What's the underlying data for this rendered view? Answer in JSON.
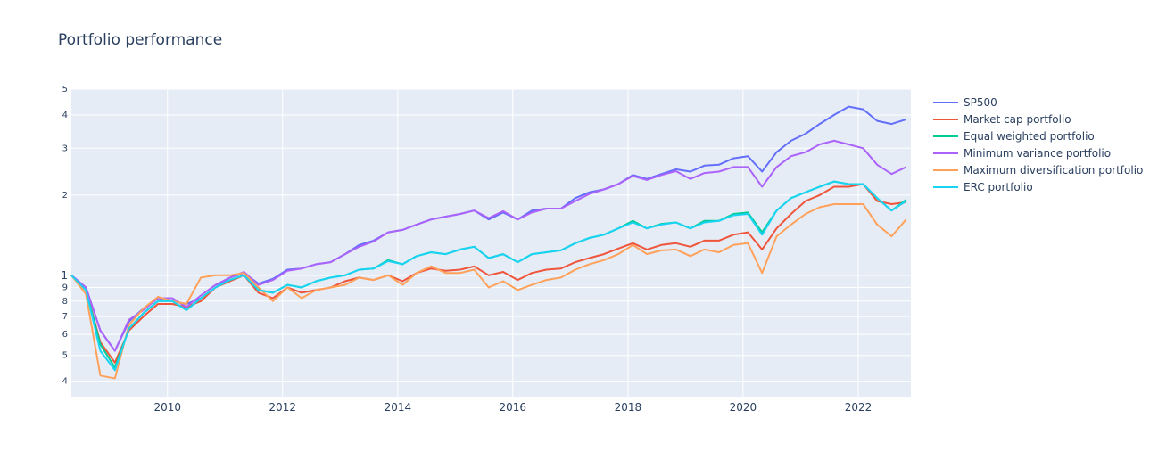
{
  "chart_data": {
    "type": "line",
    "title": "Portfolio performance",
    "xlabel": "",
    "ylabel": "",
    "y_scale": "log",
    "xlim": [
      "2008-05-01",
      "2022-12-01"
    ],
    "ylim": [
      0.35,
      5.0
    ],
    "grid": true,
    "legend_position": "right",
    "x_ticks": [
      "2010",
      "2012",
      "2014",
      "2016",
      "2018",
      "2020",
      "2022"
    ],
    "y_major_ticks": [
      "1"
    ],
    "y_minor_ticks": [
      "4",
      "5",
      "6",
      "7",
      "8",
      "9",
      "2",
      "3",
      "4",
      "5"
    ],
    "x": [
      "2008-05",
      "2008-08",
      "2008-11",
      "2009-02",
      "2009-05",
      "2009-08",
      "2009-11",
      "2010-02",
      "2010-05",
      "2010-08",
      "2010-11",
      "2011-02",
      "2011-05",
      "2011-08",
      "2011-11",
      "2012-02",
      "2012-05",
      "2012-08",
      "2012-11",
      "2013-02",
      "2013-05",
      "2013-08",
      "2013-11",
      "2014-02",
      "2014-05",
      "2014-08",
      "2014-11",
      "2015-02",
      "2015-05",
      "2015-08",
      "2015-11",
      "2016-02",
      "2016-05",
      "2016-08",
      "2016-11",
      "2017-02",
      "2017-05",
      "2017-08",
      "2017-11",
      "2018-02",
      "2018-05",
      "2018-08",
      "2018-11",
      "2019-02",
      "2019-05",
      "2019-08",
      "2019-11",
      "2020-02",
      "2020-05",
      "2020-08",
      "2020-11",
      "2021-02",
      "2021-05",
      "2021-08",
      "2021-11",
      "2022-02",
      "2022-05",
      "2022-08",
      "2022-11"
    ],
    "series": [
      {
        "name": "SP500",
        "color": "#636efa",
        "values": [
          1.0,
          0.9,
          0.62,
          0.52,
          0.67,
          0.75,
          0.82,
          0.8,
          0.78,
          0.82,
          0.9,
          0.98,
          1.02,
          0.93,
          0.97,
          1.05,
          1.06,
          1.1,
          1.12,
          1.2,
          1.3,
          1.35,
          1.45,
          1.48,
          1.55,
          1.62,
          1.66,
          1.7,
          1.75,
          1.62,
          1.72,
          1.62,
          1.75,
          1.78,
          1.78,
          1.95,
          2.05,
          2.1,
          2.2,
          2.38,
          2.3,
          2.4,
          2.5,
          2.45,
          2.58,
          2.6,
          2.75,
          2.8,
          2.45,
          2.9,
          3.2,
          3.4,
          3.7,
          4.0,
          4.3,
          4.2,
          3.8,
          3.7,
          3.85
        ]
      },
      {
        "name": "Market cap portfolio",
        "color": "#ef553b",
        "values": [
          1.0,
          0.88,
          0.56,
          0.47,
          0.62,
          0.7,
          0.78,
          0.78,
          0.76,
          0.8,
          0.9,
          0.95,
          1.0,
          0.86,
          0.82,
          0.9,
          0.86,
          0.88,
          0.9,
          0.95,
          0.98,
          0.96,
          1.0,
          0.95,
          1.02,
          1.06,
          1.04,
          1.05,
          1.08,
          1.0,
          1.03,
          0.96,
          1.02,
          1.05,
          1.06,
          1.12,
          1.16,
          1.2,
          1.26,
          1.32,
          1.25,
          1.3,
          1.32,
          1.28,
          1.35,
          1.35,
          1.42,
          1.45,
          1.25,
          1.5,
          1.7,
          1.9,
          2.0,
          2.15,
          2.15,
          2.2,
          1.9,
          1.85,
          1.88
        ]
      },
      {
        "name": "Equal weighted portfolio",
        "color": "#00cc96",
        "values": [
          1.0,
          0.88,
          0.55,
          0.45,
          0.63,
          0.72,
          0.8,
          0.8,
          0.74,
          0.82,
          0.9,
          0.96,
          1.0,
          0.88,
          0.86,
          0.92,
          0.9,
          0.95,
          0.98,
          1.0,
          1.05,
          1.06,
          1.14,
          1.1,
          1.18,
          1.22,
          1.2,
          1.25,
          1.28,
          1.16,
          1.2,
          1.12,
          1.2,
          1.22,
          1.24,
          1.32,
          1.38,
          1.42,
          1.5,
          1.6,
          1.5,
          1.56,
          1.58,
          1.5,
          1.6,
          1.6,
          1.7,
          1.72,
          1.45,
          1.75,
          1.95,
          2.05,
          2.15,
          2.25,
          2.2,
          2.2,
          1.95,
          1.75,
          1.92
        ]
      },
      {
        "name": "Minimum variance portfolio",
        "color": "#ab63fa",
        "values": [
          1.0,
          0.9,
          0.62,
          0.52,
          0.68,
          0.74,
          0.82,
          0.82,
          0.76,
          0.84,
          0.92,
          0.98,
          1.03,
          0.92,
          0.96,
          1.04,
          1.06,
          1.1,
          1.12,
          1.2,
          1.28,
          1.34,
          1.45,
          1.48,
          1.55,
          1.62,
          1.66,
          1.7,
          1.75,
          1.64,
          1.74,
          1.62,
          1.72,
          1.78,
          1.78,
          1.9,
          2.02,
          2.1,
          2.2,
          2.36,
          2.28,
          2.38,
          2.46,
          2.3,
          2.42,
          2.45,
          2.55,
          2.55,
          2.15,
          2.55,
          2.8,
          2.9,
          3.1,
          3.2,
          3.1,
          3.0,
          2.6,
          2.4,
          2.55
        ]
      },
      {
        "name": "Maximum diversification portfolio",
        "color": "#ffa15a",
        "values": [
          1.0,
          0.85,
          0.42,
          0.41,
          0.65,
          0.75,
          0.83,
          0.8,
          0.78,
          0.98,
          1.0,
          1.0,
          1.02,
          0.9,
          0.8,
          0.9,
          0.82,
          0.88,
          0.9,
          0.92,
          0.98,
          0.96,
          1.0,
          0.92,
          1.02,
          1.08,
          1.02,
          1.02,
          1.05,
          0.9,
          0.95,
          0.88,
          0.92,
          0.96,
          0.98,
          1.05,
          1.1,
          1.14,
          1.2,
          1.3,
          1.2,
          1.24,
          1.25,
          1.18,
          1.25,
          1.22,
          1.3,
          1.32,
          1.02,
          1.4,
          1.55,
          1.7,
          1.8,
          1.85,
          1.85,
          1.85,
          1.55,
          1.4,
          1.62
        ]
      },
      {
        "name": "ERC portfolio",
        "color": "#19d3f3",
        "values": [
          1.0,
          0.88,
          0.52,
          0.44,
          0.63,
          0.72,
          0.8,
          0.8,
          0.74,
          0.82,
          0.9,
          0.96,
          1.0,
          0.88,
          0.86,
          0.92,
          0.9,
          0.95,
          0.98,
          1.0,
          1.05,
          1.06,
          1.13,
          1.1,
          1.18,
          1.22,
          1.2,
          1.25,
          1.28,
          1.16,
          1.2,
          1.12,
          1.2,
          1.22,
          1.24,
          1.32,
          1.38,
          1.42,
          1.5,
          1.58,
          1.5,
          1.55,
          1.58,
          1.5,
          1.58,
          1.6,
          1.68,
          1.7,
          1.42,
          1.75,
          1.95,
          2.05,
          2.15,
          2.25,
          2.2,
          2.2,
          1.95,
          1.75,
          1.9
        ]
      }
    ]
  }
}
